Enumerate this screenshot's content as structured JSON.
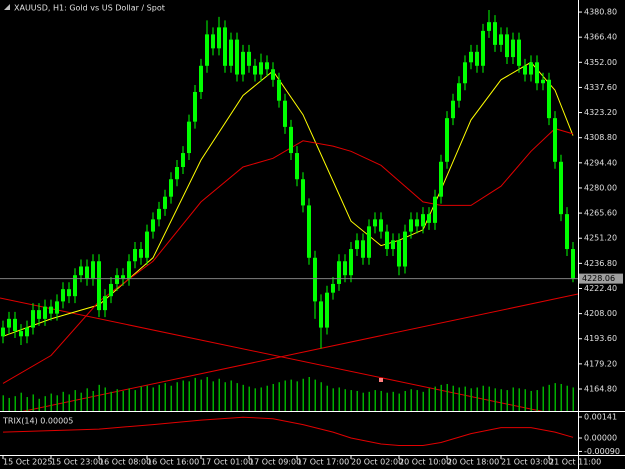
{
  "chart_data": [
    {
      "type": "candlestick",
      "title": "XAUUSD, H1: Gold vs US Dollar / Spot",
      "color": "#00ff00",
      "open": [
        4195,
        4200,
        4205,
        4198,
        4195,
        4200,
        4210,
        4205,
        4212,
        4208,
        4215,
        4222,
        4218,
        4230,
        4235,
        4228,
        4238,
        4210,
        4218,
        4225,
        4230,
        4228,
        4238,
        4245,
        4240,
        4255,
        4262,
        4268,
        4275,
        4285,
        4292,
        4300,
        4318,
        4335,
        4350,
        4368,
        4360,
        4372,
        4350,
        4365,
        4345,
        4358,
        4350,
        4345,
        4352,
        4348,
        4342,
        4330,
        4315,
        4300,
        4285,
        4270,
        4240,
        4215,
        4200,
        4220,
        4225,
        4238,
        4230,
        4245,
        4250,
        4240,
        4258,
        4262,
        4255,
        4245,
        4250,
        4235,
        4255,
        4262,
        4258,
        4265,
        4260,
        4275,
        4295,
        4320,
        4330,
        4340,
        4352,
        4358,
        4350,
        4370,
        4375,
        4362,
        4368,
        4355,
        4365,
        4350,
        4345,
        4352,
        4340,
        4342,
        4320,
        4295,
        4265,
        4245
      ],
      "high": [
        4204,
        4209,
        4209,
        4202,
        4204,
        4214,
        4214,
        4216,
        4216,
        4219,
        4226,
        4226,
        4234,
        4239,
        4239,
        4242,
        4242,
        4222,
        4229,
        4234,
        4234,
        4242,
        4249,
        4249,
        4259,
        4266,
        4272,
        4279,
        4289,
        4296,
        4304,
        4322,
        4339,
        4354,
        4376,
        4372,
        4378,
        4376,
        4369,
        4369,
        4362,
        4362,
        4354,
        4357,
        4356,
        4352,
        4346,
        4334,
        4319,
        4304,
        4289,
        4274,
        4244,
        4219,
        4224,
        4229,
        4242,
        4242,
        4249,
        4254,
        4254,
        4262,
        4266,
        4266,
        4259,
        4254,
        4254,
        4259,
        4266,
        4266,
        4269,
        4269,
        4279,
        4299,
        4324,
        4334,
        4344,
        4356,
        4362,
        4362,
        4374,
        4382,
        4379,
        4372,
        4372,
        4369,
        4369,
        4354,
        4356,
        4356,
        4346,
        4346,
        4324,
        4299,
        4269,
        4249
      ],
      "low": [
        4191,
        4196,
        4194,
        4190,
        4191,
        4196,
        4201,
        4201,
        4204,
        4204,
        4211,
        4214,
        4214,
        4226,
        4224,
        4224,
        4206,
        4206,
        4214,
        4221,
        4224,
        4224,
        4234,
        4236,
        4236,
        4251,
        4258,
        4264,
        4271,
        4281,
        4288,
        4296,
        4314,
        4331,
        4346,
        4356,
        4356,
        4346,
        4346,
        4341,
        4341,
        4346,
        4341,
        4341,
        4344,
        4338,
        4326,
        4311,
        4296,
        4281,
        4266,
        4236,
        4205,
        4188,
        4196,
        4216,
        4221,
        4226,
        4226,
        4241,
        4236,
        4236,
        4254,
        4251,
        4241,
        4241,
        4230,
        4231,
        4251,
        4254,
        4254,
        4256,
        4256,
        4271,
        4291,
        4316,
        4326,
        4336,
        4348,
        4346,
        4346,
        4366,
        4358,
        4358,
        4351,
        4351,
        4346,
        4341,
        4341,
        4336,
        4336,
        4316,
        4291,
        4261,
        4241,
        4226
      ],
      "close": [
        4200,
        4205,
        4198,
        4195,
        4200,
        4210,
        4205,
        4212,
        4208,
        4215,
        4222,
        4218,
        4230,
        4235,
        4228,
        4238,
        4210,
        4218,
        4225,
        4230,
        4228,
        4238,
        4245,
        4240,
        4255,
        4262,
        4268,
        4275,
        4285,
        4292,
        4300,
        4318,
        4335,
        4350,
        4368,
        4360,
        4372,
        4350,
        4365,
        4345,
        4358,
        4350,
        4345,
        4352,
        4348,
        4342,
        4330,
        4315,
        4300,
        4285,
        4270,
        4240,
        4215,
        4200,
        4220,
        4225,
        4238,
        4230,
        4245,
        4250,
        4240,
        4258,
        4262,
        4255,
        4245,
        4250,
        4235,
        4255,
        4262,
        4258,
        4265,
        4260,
        4275,
        4295,
        4320,
        4330,
        4340,
        4352,
        4358,
        4350,
        4370,
        4375,
        4362,
        4368,
        4355,
        4365,
        4350,
        4345,
        4352,
        4340,
        4342,
        4320,
        4295,
        4265,
        4245,
        4228
      ],
      "volume": [
        1800,
        1500,
        1700,
        2100,
        1600,
        1900,
        1400,
        1700,
        2000,
        1800,
        2200,
        1900,
        2400,
        2100,
        2600,
        2300,
        3000,
        2700,
        2200,
        2500,
        2300,
        2600,
        2400,
        2800,
        2900,
        2700,
        3000,
        3200,
        2900,
        3300,
        3500,
        3400,
        3800,
        3600,
        3900,
        3400,
        3700,
        3300,
        3500,
        3200,
        3000,
        2800,
        2600,
        2700,
        2900,
        3100,
        3300,
        3500,
        3600,
        3400,
        3700,
        3900,
        3600,
        3300,
        2900,
        2600,
        2700,
        2500,
        2400,
        2300,
        2100,
        2200,
        2400,
        2300,
        2100,
        2200,
        2000,
        2300,
        2500,
        2400,
        2200,
        2600,
        2800,
        3000,
        3100,
        2900,
        2700,
        2800,
        2600,
        2700,
        2900,
        2800,
        2600,
        2500,
        2400,
        2700,
        2600,
        2500,
        2300,
        2400,
        2800,
        3000,
        3200,
        3100,
        2900,
        2700
      ],
      "volume_color": "#00b000",
      "overlays": [
        {
          "color": "#ffff00",
          "x": [
            0,
            8,
            16,
            25,
            33,
            40,
            45,
            50,
            55,
            58,
            63,
            66,
            70,
            73,
            78,
            83,
            88,
            92,
            95
          ],
          "values": [
            4195,
            4205,
            4213,
            4240,
            4296,
            4333,
            4347,
            4322,
            4284,
            4261,
            4247,
            4250,
            4256,
            4279,
            4319,
            4342,
            4352,
            4336,
            4310
          ]
        },
        {
          "color": "#e00000",
          "x": [
            0,
            8,
            16,
            25,
            33,
            40,
            45,
            50,
            55,
            58,
            63,
            66,
            70,
            73,
            78,
            83,
            88,
            92,
            95
          ],
          "values": [
            4168,
            4184,
            4215,
            4238,
            4272,
            4292,
            4297,
            4307,
            4304,
            4301,
            4293,
            4284,
            4272,
            4270,
            4270,
            4281,
            4301,
            4314,
            4311
          ]
        }
      ],
      "last_price": 4228.06,
      "xlim": [
        -0.5,
        96
      ],
      "ylim": [
        4152.2,
        4387.7
      ],
      "yticks": [
        {
          "value": 4380.8,
          "label": "4380.80"
        },
        {
          "value": 4366.4,
          "label": "4366.40"
        },
        {
          "value": 4352,
          "label": "4352.00"
        },
        {
          "value": 4337.6,
          "label": "4337.60"
        },
        {
          "value": 4323.2,
          "label": "4323.20"
        },
        {
          "value": 4308.8,
          "label": "4308.80"
        },
        {
          "value": 4294.4,
          "label": "4294.40"
        },
        {
          "value": 4280,
          "label": "4280.00"
        },
        {
          "value": 4265.6,
          "label": "4265.60"
        },
        {
          "value": 4251.2,
          "label": "4251.20"
        },
        {
          "value": 4236.8,
          "label": "4236.80"
        },
        {
          "value": 4222.4,
          "label": "4222.40"
        },
        {
          "value": 4208,
          "label": "4208.00"
        },
        {
          "value": 4193.6,
          "label": "4193.60"
        },
        {
          "value": 4179.2,
          "label": "4179.20"
        },
        {
          "value": 4164.8,
          "label": "4164.80"
        }
      ],
      "xticks": [
        {
          "value": 0,
          "label": "15 Oct 2025"
        },
        {
          "value": 8,
          "label": "15 Oct 23:00"
        },
        {
          "value": 16,
          "label": "16 Oct 08:00"
        },
        {
          "value": 24,
          "label": "16 Oct 16:00"
        },
        {
          "value": 33,
          "label": "17 Oct 01:00"
        },
        {
          "value": 41,
          "label": "17 Oct 09:00"
        },
        {
          "value": 49,
          "label": "17 Oct 17:00"
        },
        {
          "value": 58,
          "label": "20 Oct 02:00"
        },
        {
          "value": 66,
          "label": "20 Oct 10:00"
        },
        {
          "value": 74,
          "label": "20 Oct 18:00"
        },
        {
          "value": 83,
          "label": "21 Oct 03:00"
        },
        {
          "value": 91,
          "label": "21 Oct 11:00"
        }
      ]
    },
    {
      "type": "line",
      "title": "TRIX(14) 0.00005",
      "color": "#e00000",
      "x": [
        0,
        8,
        16,
        25,
        33,
        40,
        45,
        50,
        55,
        58,
        63,
        66,
        70,
        73,
        78,
        83,
        88,
        92,
        95
      ],
      "values": [
        0.0004,
        0.0005,
        0.0006,
        0.0009,
        0.0012,
        0.0014,
        0.0013,
        0.0009,
        0.0004,
        0,
        -0.0004,
        -0.0005,
        -0.0005,
        -0.0003,
        0.0003,
        0.0007,
        0.0007,
        0.0004,
        5e-05
      ],
      "xlim": [
        -0.5,
        96
      ],
      "ylim": [
        -0.00114,
        0.00168
      ],
      "yticks": [
        {
          "value": 0.00141,
          "label": "0.00141"
        },
        {
          "value": 0,
          "label": "0.00000"
        },
        {
          "value": -0.0009,
          "label": "-0.00090"
        }
      ]
    }
  ]
}
